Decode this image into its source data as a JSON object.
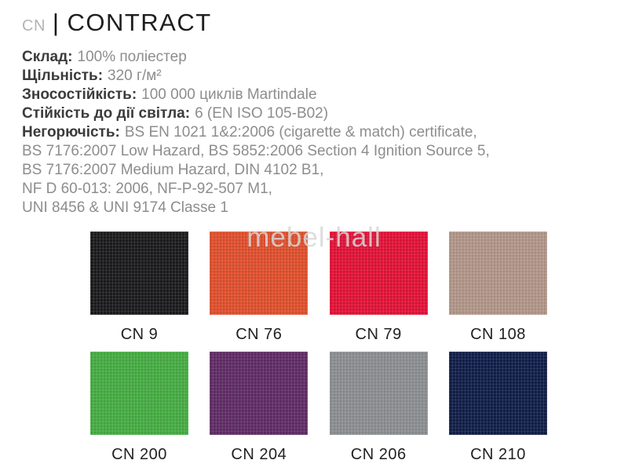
{
  "title": {
    "code": "CN",
    "separator": "|",
    "name": "CONTRACT"
  },
  "specs": [
    {
      "label": "Склад:",
      "value": "100% поліестер"
    },
    {
      "label": "Щільність:",
      "value": "320 г/м²"
    },
    {
      "label": "Зносостійкість:",
      "value": "100 000 циклів Martindale"
    },
    {
      "label": "Стійкість до дії світла:",
      "value": "6 (EN ISO 105-B02)"
    },
    {
      "label": "Негорючість:",
      "value": "BS EN 1021 1&2:2006 (cigarette & match) certificate,"
    },
    {
      "label": "",
      "value": "BS 7176:2007 Low Hazard, BS 5852:2006 Section 4 Ignition Source 5,"
    },
    {
      "label": "",
      "value": "BS 7176:2007 Medium Hazard, DIN 4102 B1,"
    },
    {
      "label": "",
      "value": "NF D 60-013: 2006, NF-P-92-507 M1,"
    },
    {
      "label": "",
      "value": "UNI 8456 & UNI 9174 Classe 1"
    }
  ],
  "watermark": "mebel-hall",
  "swatches": [
    {
      "code": "CN 9",
      "color": "#1b1b1d"
    },
    {
      "code": "CN 76",
      "color": "#e2502d"
    },
    {
      "code": "CN 79",
      "color": "#e41237"
    },
    {
      "code": "CN 108",
      "color": "#b3988a"
    },
    {
      "code": "CN 200",
      "color": "#46ae43"
    },
    {
      "code": "CN 204",
      "color": "#612c66"
    },
    {
      "code": "CN 206",
      "color": "#8d9092"
    },
    {
      "code": "CN 210",
      "color": "#101e49"
    }
  ]
}
